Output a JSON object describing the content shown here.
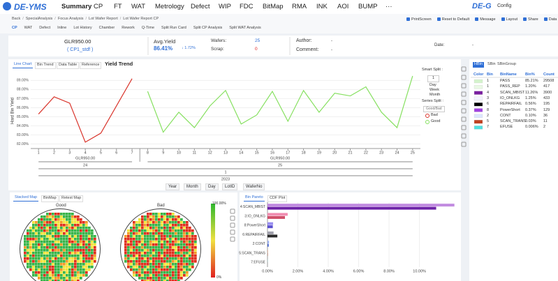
{
  "nav": {
    "logo": "DE-YMS",
    "menu": [
      "Summary",
      "CP",
      "FT",
      "WAT",
      "Metrology",
      "Defect",
      "WIP",
      "FDC",
      "BitMap",
      "RMA",
      "INK",
      "AOI",
      "BUMP",
      "···"
    ],
    "brand": "DE-G",
    "config": "Config"
  },
  "breadcrumb": [
    "Back",
    "SpecialAnalysis",
    "Focus Analysis",
    "Lot Wafer Report",
    "Lot Wafer Report CP"
  ],
  "toolbar": [
    "PrintScreen",
    "Reset to Default",
    "Message",
    "Layout",
    "Share",
    "Data Ca"
  ],
  "tabs": [
    "CP",
    "WAT",
    "Defect",
    "Inline",
    "Lot History",
    "Chamber",
    "Rework",
    "Q-Time",
    "Split Run Card",
    "Split CP Analysis",
    "Split WAT Analysis"
  ],
  "info": {
    "lot": "GLR950.00",
    "program": "( CP1_stdf )",
    "avg_yield_label": "Avg.Yield",
    "avg_yield": "86.41%",
    "delta": "↓ 1.72%",
    "wafers_label": "Wafers:",
    "wafers": "25",
    "scrap_label": "Scrap:",
    "scrap": "0",
    "author_label": "Author:",
    "author": "-",
    "comment_label": "Comment:",
    "comment": "-",
    "date_label": "Date:",
    "date": "-"
  },
  "trend_panel": {
    "tabs": [
      "Line Chart",
      "Bin Trend",
      "Data Table",
      "Reference"
    ],
    "smart_split_label": "Smart Split :",
    "smart_split": "1",
    "periods": [
      "Day",
      "Week",
      "Month"
    ],
    "series_split_label": "Series Split :",
    "series_split": "Good/Bad",
    "groups": [
      {
        "lot": "GLR950.00",
        "wafer": "24"
      },
      {
        "lot": "GLR950.00",
        "wafer": "25"
      }
    ],
    "month": "1",
    "year": "2023",
    "filters": [
      "Year",
      "Month",
      "Day",
      "LotID",
      "WaferNo"
    ]
  },
  "chart_data": [
    {
      "type": "line",
      "title": "Yield Trend",
      "y_label": "Hard Bin Yield",
      "xlim": [
        0.5,
        25.5
      ],
      "xticks": [
        1,
        2,
        3,
        4,
        5,
        6,
        7,
        8,
        9,
        10,
        11,
        12,
        13,
        14,
        15,
        16,
        17,
        18,
        19,
        20,
        21,
        22,
        23,
        24,
        25
      ],
      "ylim": [
        81.5,
        89.8
      ],
      "yticks": [
        {
          "value": 82,
          "label": "82.00%"
        },
        {
          "value": 83,
          "label": "83.00%"
        },
        {
          "value": 84,
          "label": "84.00%"
        },
        {
          "value": 85,
          "label": "85.00%"
        },
        {
          "value": 86,
          "label": "86.00%"
        },
        {
          "value": 87,
          "label": "87.00%"
        },
        {
          "value": 88,
          "label": "88.00%"
        },
        {
          "value": 89,
          "label": "89.00%"
        }
      ],
      "grid": true,
      "series": [
        {
          "name": "Bad",
          "color": "#d9342b",
          "x": [
            1,
            2,
            3,
            4,
            5,
            7
          ],
          "values": [
            85.3,
            87.2,
            86.5,
            82.2,
            83.2,
            89.2
          ]
        },
        {
          "name": "Good",
          "color": "#86e060",
          "x": [
            8,
            9,
            10,
            11,
            12,
            13,
            14,
            15,
            16,
            17,
            18,
            19,
            20,
            21,
            22,
            23,
            24,
            25
          ],
          "values": [
            87.8,
            83.3,
            85.5,
            83.8,
            86.2,
            87.9,
            84.2,
            85.2,
            87.8,
            84.5,
            87.9,
            85.5,
            87.6,
            87.3,
            88.3,
            85.5,
            83.8,
            89.5
          ]
        }
      ]
    },
    {
      "type": "bar",
      "orientation": "horizontal",
      "categories": [
        "4:SCAN_MBIST",
        "3:IO_ONLKG",
        "8:PowerShort",
        "6:REPAIRFAIL",
        "2:CONT",
        "5:SCAN_TRANS",
        "7:EFUSE"
      ],
      "xlim": [
        0,
        12.5
      ],
      "xticks": [
        {
          "value": 0,
          "label": "0.00%"
        },
        {
          "value": 2,
          "label": "2.00%"
        },
        {
          "value": 4,
          "label": "4.00%"
        },
        {
          "value": 6,
          "label": "6.00%"
        },
        {
          "value": 8,
          "label": "8.00%"
        },
        {
          "value": 10,
          "label": "10.00%"
        }
      ],
      "series": [
        {
          "colors": [
            "#c18be0",
            "#f08cb0",
            "#9a8ff0",
            "#a0a0ac",
            "#9ab0f0",
            "#e0a080",
            "#80e0e0"
          ],
          "values": [
            12.3,
            1.33,
            0.37,
            0.4,
            0.1,
            0.03,
            0.01
          ]
        },
        {
          "colors": [
            "#6d22a8",
            "#d0506a",
            "#5a4fd0",
            "#2a2a2a",
            "#4060d0",
            "#b05030",
            "#40c0c0"
          ],
          "values": [
            11.1,
            1.15,
            0.35,
            0.65,
            0.08,
            0.02,
            0
          ]
        }
      ]
    }
  ],
  "bin_table": {
    "tabs": [
      "HBin",
      "SBin",
      "SBinGroup"
    ],
    "headers": [
      "Color",
      "Bin",
      "BinName",
      "Bin%",
      "Count"
    ],
    "rows": [
      {
        "color": "#d4f3cc",
        "cells": [
          "1",
          "PASS",
          "85.21%",
          "29508"
        ]
      },
      {
        "color": "#e9f9e4",
        "cells": [
          "1",
          "PASS_REP",
          "1.20%",
          "417"
        ]
      },
      {
        "color": "#7a1fa0",
        "cells": [
          "4",
          "SCAN_MBIST",
          "11.26%",
          "3900"
        ]
      },
      {
        "color": "#f4f4ff",
        "cells": [
          "3",
          "IO_ONLKG",
          "1.25%",
          "433"
        ]
      },
      {
        "color": "#000000",
        "cells": [
          "6",
          "REPAIRFAIL",
          "0.56%",
          "195"
        ]
      },
      {
        "color": "#a040e0",
        "cells": [
          "8",
          "PowerShort",
          "0.37%",
          "129"
        ]
      },
      {
        "color": "#dde6ff",
        "cells": [
          "2",
          "CONT",
          "0.10%",
          "36"
        ]
      },
      {
        "color": "#c04020",
        "cells": [
          "5",
          "SCAN_TRANS",
          "0.03%",
          "11"
        ]
      },
      {
        "color": "#50e0e0",
        "cells": [
          "7",
          "EFUSE",
          "0.006%",
          "2"
        ]
      }
    ]
  },
  "map_panel": {
    "tabs": [
      "Stacked Map",
      "BinMap",
      "Retest Map"
    ],
    "titles": [
      "Good",
      "Bad"
    ],
    "scale_max": "100.00%",
    "scale_min": "0%"
  },
  "pareto_panel": {
    "tabs": [
      "Bin Pareto",
      "CDF Plot"
    ]
  }
}
